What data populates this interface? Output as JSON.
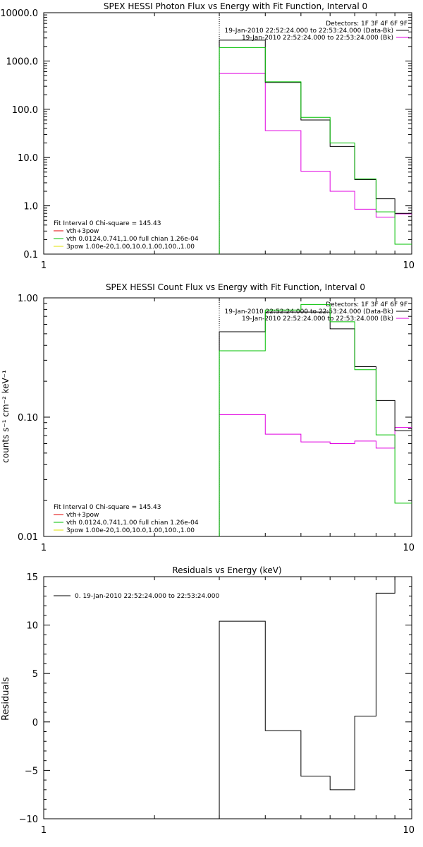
{
  "colors": {
    "data": "#000000",
    "bk": "#e000e0",
    "model": "#00c000",
    "vth": "#e00000",
    "pow": "#e0e000",
    "marker": "#00a000"
  },
  "chart_data": [
    {
      "type": "line",
      "title": "SPEX HESSI Photon Flux vs Energy with Fit Function, Interval 0",
      "xlabel": "",
      "ylabel": "",
      "xscale": "log",
      "yscale": "log",
      "xlim": [
        1,
        10
      ],
      "ylim": [
        0.1,
        10000
      ],
      "xtick_labels": [
        "1",
        "10"
      ],
      "ytick_labels": [
        "0.1",
        "1.0",
        "10.0",
        "100.0",
        "1000.0",
        "10000.0"
      ],
      "marker_x": 3,
      "edges": [
        3,
        4,
        5,
        6,
        7,
        8,
        9,
        10
      ],
      "legend_header": "Detectors: 1F 3F 4F 6F 9F",
      "legend_entries": [
        "19-Jan-2010 22:52:24.000 to 22:53:24.000 (Data-Bk)",
        "19-Jan-2010 22:52:24.000 to 22:53:24.000 (Bk)"
      ],
      "fit_info": {
        "header": "Fit Interval 0   Chi-square = 145.43",
        "lines": [
          "vth+3pow",
          "vth 0.0124,0.741,1.00  full chian 1.26e-04",
          "3pow 1.00e-20,1.00,10.0,1.00,100.,1.00"
        ]
      },
      "series": [
        {
          "name": "19-Jan-2010 22:52:24.000 to 22:53:24.000 (Data-Bk)",
          "color": "#000000",
          "values": [
            2700,
            360,
            60,
            17,
            3.5,
            1.4,
            0.7
          ]
        },
        {
          "name": "19-Jan-2010 22:52:24.000 to 22:53:24.000 (Bk)",
          "color": "#e000e0",
          "values": [
            550,
            36,
            5.2,
            2.0,
            0.85,
            0.58,
            0.68
          ]
        },
        {
          "name": "vth 0.0124,0.741,1.00  full chian 1.26e-04",
          "color": "#00c000",
          "values": [
            1900,
            370,
            68,
            20,
            3.6,
            0.75,
            0.16
          ]
        }
      ]
    },
    {
      "type": "line",
      "title": "SPEX HESSI Count Flux vs Energy with Fit Function, Interval 0",
      "xlabel": "",
      "ylabel": "counts s⁻¹ cm⁻² keV⁻¹",
      "xscale": "log",
      "yscale": "log",
      "xlim": [
        1,
        10
      ],
      "ylim": [
        0.01,
        1.0
      ],
      "xtick_labels": [
        "1",
        "10"
      ],
      "ytick_labels": [
        "0.01",
        "0.10",
        "1.00"
      ],
      "marker_x": 3,
      "edges": [
        3,
        4,
        5,
        6,
        7,
        8,
        9,
        10
      ],
      "legend_header": "Detectors: 1F 3F 4F 6F 9F",
      "legend_entries": [
        "19-Jan-2010 22:52:24.000 to 22:53:24.000 (Data-Bk)",
        "19-Jan-2010 22:52:24.000 to 22:53:24.000 (Bk)"
      ],
      "fit_info": {
        "header": "Fit Interval 0   Chi-square = 145.43",
        "lines": [
          "vth+3pow",
          "vth 0.0124,0.741,1.00  full chian 1.26e-04",
          "3pow 1.00e-20,1.00,10.0,1.00,100.,1.00"
        ]
      },
      "series": [
        {
          "name": "19-Jan-2010 22:52:24.000 to 22:53:24.000 (Data-Bk)",
          "color": "#000000",
          "values": [
            0.52,
            0.76,
            0.76,
            0.55,
            0.265,
            0.138,
            0.077
          ]
        },
        {
          "name": "19-Jan-2010 22:52:24.000 to 22:53:24.000 (Bk)",
          "color": "#e000e0",
          "values": [
            0.105,
            0.072,
            0.062,
            0.06,
            0.063,
            0.055,
            0.082
          ]
        },
        {
          "name": "vth 0.0124,0.741,1.00  full chian 1.26e-04",
          "color": "#00c000",
          "values": [
            0.36,
            0.79,
            0.88,
            0.63,
            0.25,
            0.071,
            0.019
          ]
        }
      ]
    },
    {
      "type": "line",
      "title": "Residuals vs Energy (keV)",
      "xlabel": "",
      "ylabel": "Residuals",
      "xscale": "log",
      "yscale": "linear",
      "xlim": [
        1,
        10
      ],
      "ylim": [
        -10,
        15
      ],
      "xtick_labels": [
        "1",
        "10"
      ],
      "ytick_labels": [
        "−10",
        "−5",
        "0",
        "5",
        "10",
        "15"
      ],
      "edges": [
        3,
        4,
        5,
        6,
        7,
        8,
        9,
        10
      ],
      "legend_entries": [
        "0. 19-Jan-2010 22:52:24.000 to 22:53:24.000"
      ],
      "series": [
        {
          "name": "0. 19-Jan-2010 22:52:24.000 to 22:53:24.000",
          "color": "#000000",
          "values": [
            10.4,
            -0.9,
            -5.6,
            -7.0,
            0.6,
            13.3,
            15.0
          ]
        }
      ]
    }
  ]
}
